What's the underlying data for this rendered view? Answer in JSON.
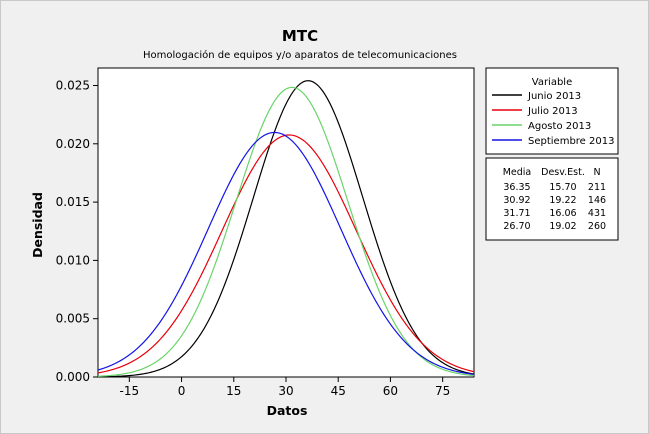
{
  "chart_data": {
    "type": "line",
    "title": "MTC",
    "subtitle": "Homologación de equipos y/o aparatos de telecomunicaciones",
    "xlabel": "Datos",
    "ylabel": "Densidad",
    "xlim": [
      -24,
      84
    ],
    "ylim": [
      0,
      0.0265
    ],
    "xticks": [
      "-15",
      "0",
      "15",
      "30",
      "45",
      "60",
      "75"
    ],
    "xtick_values": [
      -15,
      0,
      15,
      30,
      45,
      60,
      75
    ],
    "yticks": [
      "0.000",
      "0.005",
      "0.010",
      "0.015",
      "0.020",
      "0.025"
    ],
    "ytick_values": [
      0,
      0.005,
      0.01,
      0.015,
      0.02,
      0.025
    ],
    "grid": false,
    "legend": {
      "title": "Variable",
      "placement": "right",
      "stats_headers": [
        "Media",
        "Desv.Est.",
        "N"
      ]
    },
    "series": [
      {
        "name": "Junio 2013",
        "color": "#000000",
        "mean": 36.35,
        "mean_label": "36.35",
        "sd": 15.7,
        "sd_label": "15.70",
        "n": "211"
      },
      {
        "name": "Julio 2013",
        "color": "#e8000b",
        "mean": 30.92,
        "mean_label": "30.92",
        "sd": 19.22,
        "sd_label": "19.22",
        "n": "146"
      },
      {
        "name": "Agosto 2013",
        "color": "#6ad46a",
        "mean": 31.71,
        "mean_label": "31.71",
        "sd": 16.06,
        "sd_label": "16.06",
        "n": "431"
      },
      {
        "name": "Septiembre 2013",
        "color": "#1414e6",
        "mean": 26.7,
        "mean_label": "26.70",
        "sd": 19.02,
        "sd_label": "19.02",
        "n": "260"
      }
    ]
  }
}
